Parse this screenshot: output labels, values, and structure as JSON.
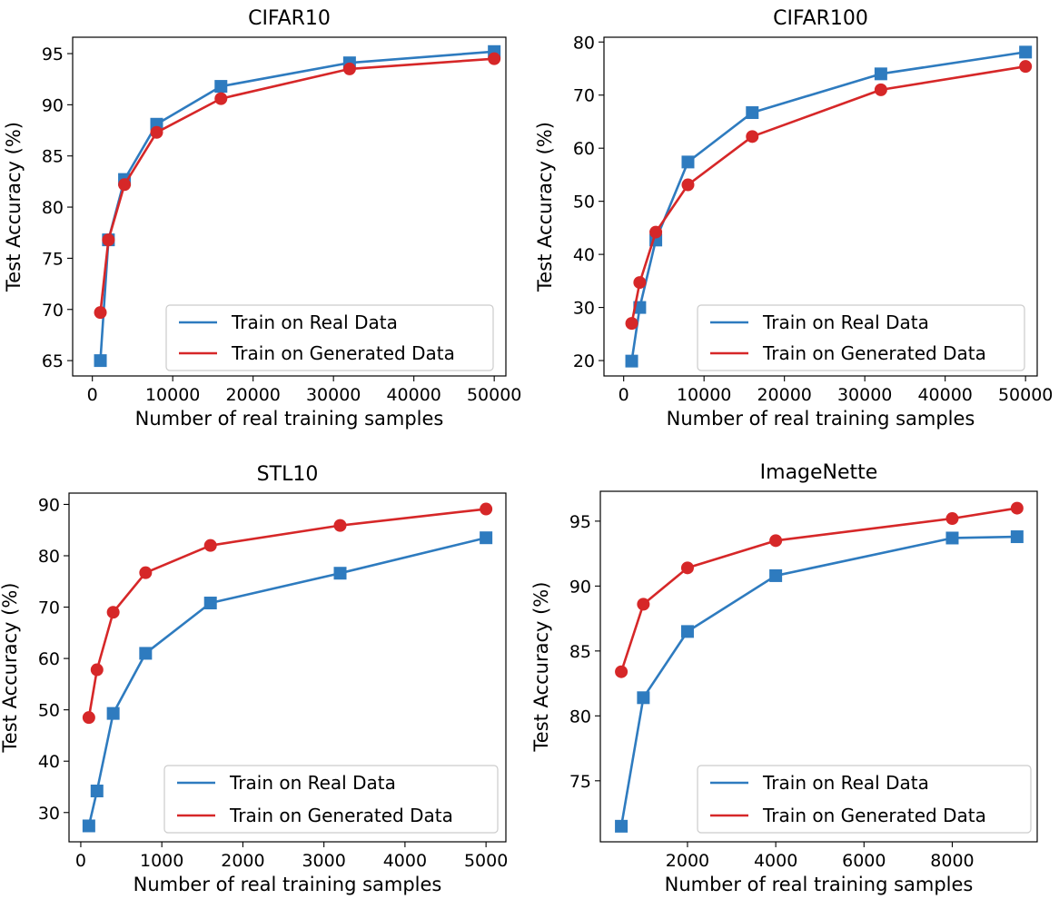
{
  "chart_data": [
    {
      "type": "line",
      "title": "CIFAR10",
      "xlabel": "Number of real training samples",
      "ylabel": "Test Accuracy (%)",
      "xlim": [
        -2450,
        51450
      ],
      "ylim": [
        63.5,
        96.6
      ],
      "xticks": [
        0,
        10000,
        20000,
        30000,
        40000,
        50000
      ],
      "yticks": [
        65,
        70,
        75,
        80,
        85,
        90,
        95
      ],
      "legend_position": "lower-right",
      "grid": false,
      "series": [
        {
          "name": "Train on Real Data",
          "color": "#2e7bbf",
          "marker": "square",
          "x": [
            1000,
            2000,
            4000,
            8000,
            16000,
            32000,
            50000
          ],
          "y": [
            65.0,
            76.8,
            82.7,
            88.1,
            91.8,
            94.1,
            95.2
          ]
        },
        {
          "name": "Train on Generated Data",
          "color": "#d62728",
          "marker": "circle",
          "x": [
            1000,
            2000,
            4000,
            8000,
            16000,
            32000,
            50000
          ],
          "y": [
            69.7,
            76.8,
            82.2,
            87.3,
            90.6,
            93.5,
            94.5
          ]
        }
      ]
    },
    {
      "type": "line",
      "title": "CIFAR100",
      "xlabel": "Number of real training samples",
      "ylabel": "Test Accuracy (%)",
      "xlim": [
        -2450,
        51450
      ],
      "ylim": [
        17.1,
        80.9
      ],
      "xticks": [
        0,
        10000,
        20000,
        30000,
        40000,
        50000
      ],
      "yticks": [
        20,
        30,
        40,
        50,
        60,
        70,
        80
      ],
      "legend_position": "lower-right",
      "grid": false,
      "series": [
        {
          "name": "Train on Real Data",
          "color": "#2e7bbf",
          "marker": "square",
          "x": [
            1000,
            2000,
            4000,
            8000,
            16000,
            32000,
            50000
          ],
          "y": [
            19.9,
            30.0,
            42.7,
            57.4,
            66.7,
            74.0,
            78.1
          ]
        },
        {
          "name": "Train on Generated Data",
          "color": "#d62728",
          "marker": "circle",
          "x": [
            1000,
            2000,
            4000,
            8000,
            16000,
            32000,
            50000
          ],
          "y": [
            27.0,
            34.7,
            44.2,
            53.1,
            62.2,
            71.0,
            75.4
          ]
        }
      ]
    },
    {
      "type": "line",
      "title": "STL10",
      "xlabel": "Number of real training samples",
      "ylabel": "Test Accuracy (%)",
      "xlim": [
        -145,
        5245
      ],
      "ylim": [
        24.3,
        92.2
      ],
      "xticks": [
        0,
        1000,
        2000,
        3000,
        4000,
        5000
      ],
      "yticks": [
        30,
        40,
        50,
        60,
        70,
        80,
        90
      ],
      "legend_position": "lower-right",
      "grid": false,
      "series": [
        {
          "name": "Train on Real Data",
          "color": "#2e7bbf",
          "marker": "square",
          "x": [
            100,
            200,
            400,
            800,
            1600,
            3200,
            5000
          ],
          "y": [
            27.4,
            34.2,
            49.3,
            61.0,
            70.8,
            76.6,
            83.5
          ]
        },
        {
          "name": "Train on Generated Data",
          "color": "#d62728",
          "marker": "circle",
          "x": [
            100,
            200,
            400,
            800,
            1600,
            3200,
            5000
          ],
          "y": [
            48.5,
            57.8,
            69.0,
            76.7,
            82.0,
            85.9,
            89.1
          ]
        }
      ]
    },
    {
      "type": "line",
      "title": "ImageNette",
      "xlabel": "Number of real training samples",
      "ylabel": "Test Accuracy (%)",
      "xlim": [
        25,
        9925
      ],
      "ylim": [
        70.3,
        97.3
      ],
      "xticks": [
        2000,
        4000,
        6000,
        8000
      ],
      "yticks": [
        75,
        80,
        85,
        90,
        95
      ],
      "legend_position": "lower-right",
      "grid": false,
      "series": [
        {
          "name": "Train on Real Data",
          "color": "#2e7bbf",
          "marker": "square",
          "x": [
            500,
            1000,
            2000,
            4000,
            8000,
            9469
          ],
          "y": [
            71.5,
            81.4,
            86.5,
            90.8,
            93.7,
            93.8
          ]
        },
        {
          "name": "Train on Generated Data",
          "color": "#d62728",
          "marker": "circle",
          "x": [
            500,
            1000,
            2000,
            4000,
            8000,
            9469
          ],
          "y": [
            83.4,
            88.6,
            91.4,
            93.5,
            95.2,
            96.0
          ]
        }
      ]
    }
  ]
}
